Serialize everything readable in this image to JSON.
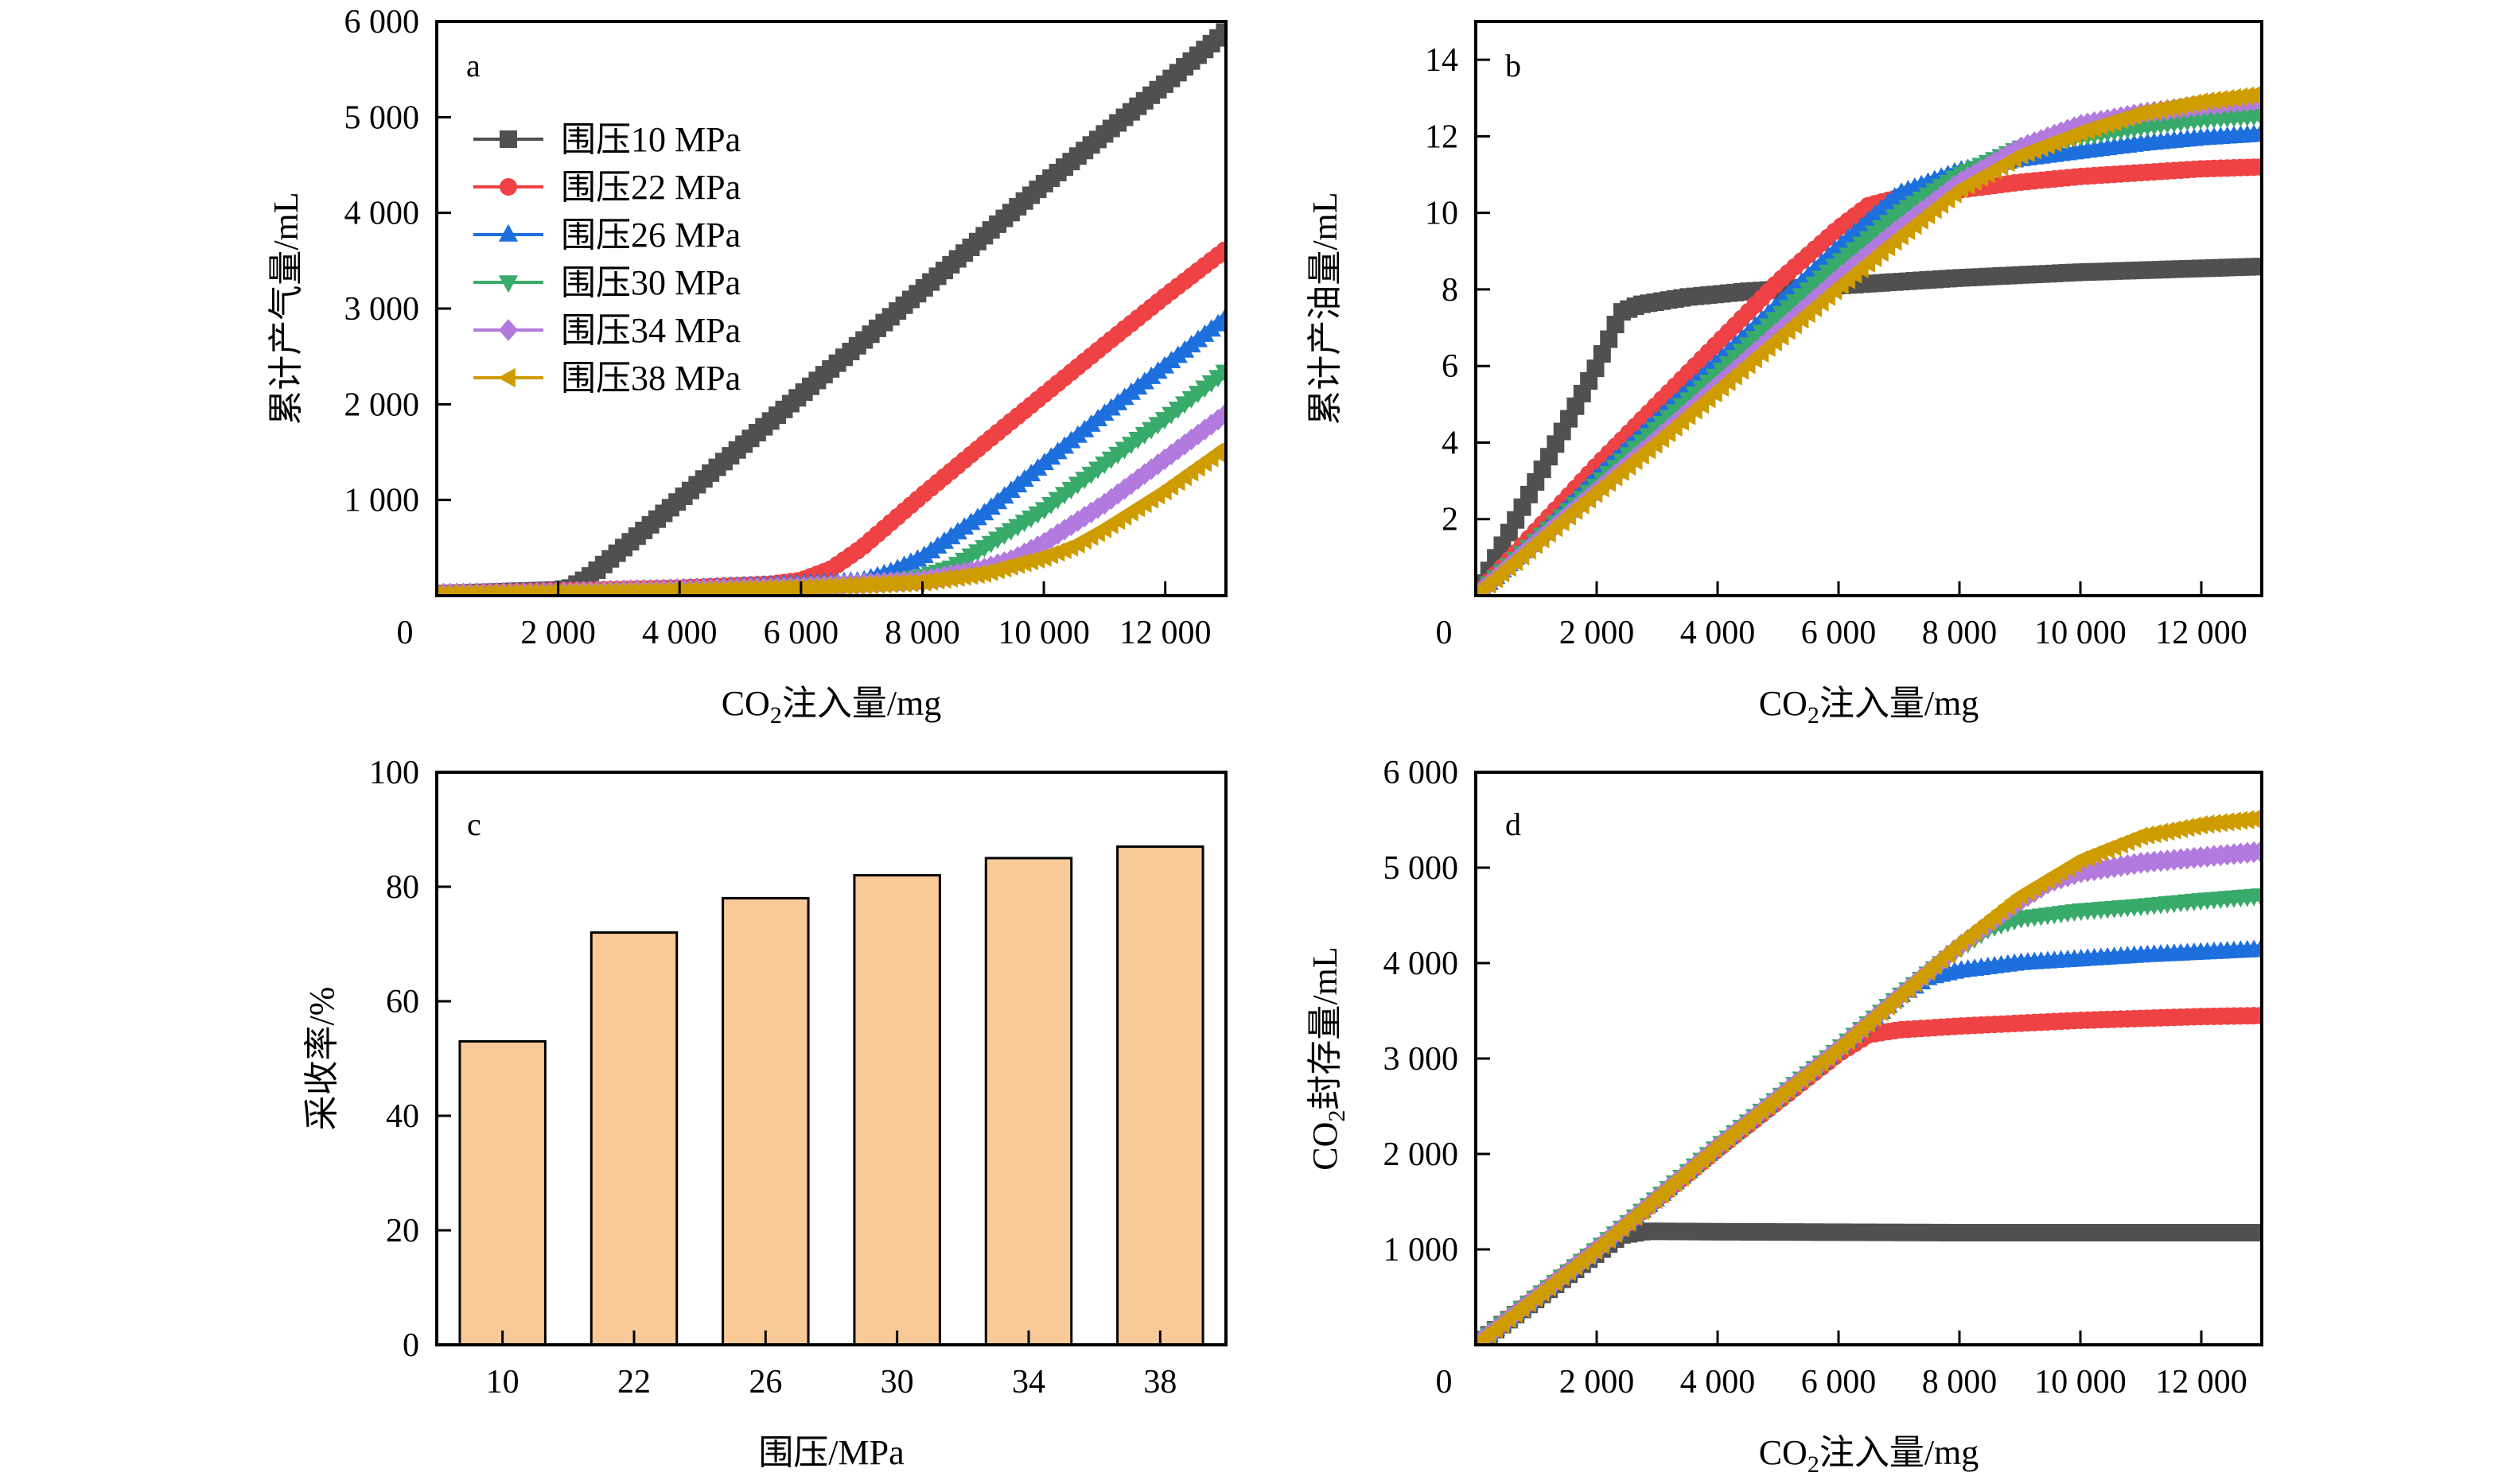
{
  "figure": {
    "legend_title": "",
    "series_meta": [
      {
        "name": "围压10 MPa",
        "color": "#505050",
        "marker": "square"
      },
      {
        "name": "围压22 MPa",
        "color": "#ee4244",
        "marker": "circle"
      },
      {
        "name": "围压26 MPa",
        "color": "#1e6fde",
        "marker": "triangle-up"
      },
      {
        "name": "围压30 MPa",
        "color": "#38aa6a",
        "marker": "triangle-down"
      },
      {
        "name": "围压34 MPa",
        "color": "#b27ade",
        "marker": "diamond"
      },
      {
        "name": "围压38 MPa",
        "color": "#cf9c00",
        "marker": "triangle-left"
      }
    ]
  },
  "chart_data": [
    {
      "panel": "a",
      "type": "line",
      "title": "",
      "xlabel": "CO2注入量/mg",
      "xlabel_parts": {
        "pre": "CO",
        "sub": "2",
        "post": "注入量/mg"
      },
      "ylabel": "累计产气量/mL",
      "xlim": [
        0,
        13000
      ],
      "ylim": [
        0,
        6000
      ],
      "xticks": [
        0,
        2000,
        4000,
        6000,
        8000,
        10000,
        12000
      ],
      "xtick_labels": [
        "0",
        "2 000",
        "4 000",
        "6 000",
        "8 000",
        "10 000",
        "12 000"
      ],
      "yticks": [
        1000,
        2000,
        3000,
        4000,
        5000,
        6000
      ],
      "ytick_labels": [
        "1 000",
        "2 000",
        "3 000",
        "4 000",
        "5 000",
        "6 000"
      ],
      "legend": "top-left",
      "grid": false,
      "series": [
        {
          "name": "围压10 MPa",
          "x": [
            0,
            1000,
            2000,
            2200,
            2500,
            4000,
            6000,
            8000,
            10000,
            12000,
            13000
          ],
          "values": [
            20,
            40,
            60,
            80,
            190,
            1000,
            2100,
            3200,
            4300,
            5350,
            5900
          ]
        },
        {
          "name": "围压22 MPa",
          "x": [
            0,
            2000,
            4000,
            5500,
            6000,
            6500,
            7000,
            8000,
            9000,
            10000,
            11000,
            12000,
            13000
          ],
          "values": [
            20,
            50,
            80,
            120,
            160,
            280,
            500,
            1050,
            1580,
            2100,
            2620,
            3130,
            3620
          ]
        },
        {
          "name": "围压26 MPa",
          "x": [
            0,
            2000,
            4000,
            6000,
            7000,
            7500,
            8000,
            9000,
            10000,
            11000,
            12000,
            13000
          ],
          "values": [
            20,
            45,
            75,
            120,
            150,
            250,
            400,
            850,
            1380,
            1900,
            2400,
            2900
          ]
        },
        {
          "name": "围压30 MPa",
          "x": [
            0,
            2000,
            4000,
            6000,
            7500,
            8000,
            8500,
            9000,
            10000,
            11000,
            12000,
            13000
          ],
          "values": [
            20,
            40,
            65,
            100,
            150,
            200,
            300,
            500,
            900,
            1380,
            1850,
            2350
          ]
        },
        {
          "name": "围压34 MPa",
          "x": [
            0,
            2000,
            4000,
            6000,
            8000,
            9000,
            9500,
            10000,
            11000,
            12000,
            13000
          ],
          "values": [
            20,
            35,
            60,
            90,
            160,
            280,
            380,
            550,
            960,
            1430,
            1900
          ]
        },
        {
          "name": "围压38 MPa",
          "x": [
            0,
            2000,
            4000,
            6000,
            8000,
            9000,
            10000,
            10500,
            11000,
            12000,
            13000
          ],
          "values": [
            15,
            30,
            50,
            80,
            140,
            230,
            400,
            520,
            700,
            1100,
            1550
          ]
        }
      ]
    },
    {
      "panel": "b",
      "type": "line",
      "title": "",
      "xlabel": "CO2注入量/mg",
      "xlabel_parts": {
        "pre": "CO",
        "sub": "2",
        "post": "注入量/mg"
      },
      "ylabel": "累计产油量/mL",
      "xlim": [
        0,
        13000
      ],
      "ylim": [
        0,
        15
      ],
      "xticks": [
        0,
        2000,
        4000,
        6000,
        8000,
        10000,
        12000
      ],
      "xtick_labels": [
        "0",
        "2 000",
        "4 000",
        "6 000",
        "8 000",
        "10 000",
        "12 000"
      ],
      "yticks": [
        2,
        4,
        6,
        8,
        10,
        12,
        14
      ],
      "ytick_labels": [
        "2",
        "4",
        "6",
        "8",
        "10",
        "12",
        "14"
      ],
      "grid": false,
      "series": [
        {
          "name": "围压10 MPa",
          "x": [
            0,
            1000,
            2000,
            2400,
            2700,
            3500,
            4500,
            6000,
            8000,
            10000,
            12000,
            13000
          ],
          "values": [
            0,
            3.0,
            6.0,
            7.4,
            7.6,
            7.8,
            7.95,
            8.1,
            8.3,
            8.45,
            8.55,
            8.6
          ]
        },
        {
          "name": "围压22 MPa",
          "x": [
            0,
            1000,
            2000,
            3000,
            4000,
            5000,
            6000,
            6500,
            7000,
            8000,
            9000,
            10000,
            11000,
            12000,
            13000
          ],
          "values": [
            0,
            1.7,
            3.4,
            5.0,
            6.6,
            8.2,
            9.6,
            10.2,
            10.4,
            10.6,
            10.8,
            10.95,
            11.05,
            11.15,
            11.2
          ]
        },
        {
          "name": "围压26 MPa",
          "x": [
            0,
            1000,
            2000,
            3000,
            4000,
            5000,
            6000,
            7000,
            8000,
            9000,
            10000,
            11000,
            12000,
            13000
          ],
          "values": [
            0,
            1.5,
            3.1,
            4.6,
            6.1,
            7.6,
            9.1,
            10.5,
            11.1,
            11.4,
            11.6,
            11.8,
            11.95,
            12.05
          ]
        },
        {
          "name": "围压30 MPa",
          "x": [
            0,
            1000,
            2000,
            3000,
            4000,
            5000,
            6000,
            7000,
            8000,
            9000,
            10000,
            11000,
            12000,
            13000
          ],
          "values": [
            0,
            1.45,
            2.9,
            4.4,
            5.8,
            7.3,
            8.7,
            10.0,
            11.0,
            11.7,
            12.0,
            12.25,
            12.45,
            12.55
          ]
        },
        {
          "name": "围压34 MPa",
          "x": [
            0,
            1000,
            2000,
            3000,
            4000,
            5000,
            6000,
            7000,
            8000,
            9000,
            10000,
            11000,
            12000,
            13000
          ],
          "values": [
            0,
            1.4,
            2.75,
            4.1,
            5.5,
            6.9,
            8.3,
            9.6,
            10.8,
            11.7,
            12.3,
            12.6,
            12.8,
            12.95
          ]
        },
        {
          "name": "围压38 MPa",
          "x": [
            0,
            1000,
            2000,
            3000,
            4000,
            5000,
            6000,
            7000,
            8000,
            9000,
            10000,
            11000,
            12000,
            13000
          ],
          "values": [
            0,
            1.35,
            2.7,
            4.0,
            5.35,
            6.7,
            8.05,
            9.35,
            10.6,
            11.5,
            12.1,
            12.6,
            12.9,
            13.1
          ]
        }
      ]
    },
    {
      "panel": "c",
      "type": "bar",
      "title": "",
      "xlabel": "围压/MPa",
      "ylabel": "采收率/%",
      "categories": [
        "10",
        "22",
        "26",
        "30",
        "34",
        "38"
      ],
      "values": [
        53,
        72,
        78,
        82,
        85,
        87
      ],
      "ylim": [
        0,
        100
      ],
      "yticks": [
        0,
        20,
        40,
        60,
        80,
        100
      ],
      "ytick_labels": [
        "0",
        "20",
        "40",
        "60",
        "80",
        "100"
      ],
      "bar_color": "#f9c998",
      "grid": false
    },
    {
      "panel": "d",
      "type": "line",
      "title": "",
      "xlabel": "CO2注入量/mg",
      "xlabel_parts": {
        "pre": "CO",
        "sub": "2",
        "post": "注入量/mg"
      },
      "ylabel": "CO2封存量/mL",
      "ylabel_parts": {
        "pre": "CO",
        "sub": "2",
        "post": "封存量/mL"
      },
      "xlim": [
        0,
        13000
      ],
      "ylim": [
        0,
        6000
      ],
      "xticks": [
        0,
        2000,
        4000,
        6000,
        8000,
        10000,
        12000
      ],
      "xtick_labels": [
        "0",
        "2 000",
        "4 000",
        "6 000",
        "8 000",
        "10 000",
        "12 000"
      ],
      "yticks": [
        1000,
        2000,
        3000,
        4000,
        5000,
        6000
      ],
      "ytick_labels": [
        "1 000",
        "2 000",
        "3 000",
        "4 000",
        "5 000",
        "6 000"
      ],
      "grid": false,
      "series": [
        {
          "name": "围压10 MPa",
          "x": [
            0,
            1000,
            2000,
            2400,
            2800,
            4000,
            6000,
            8000,
            10000,
            12000,
            13000
          ],
          "values": [
            0,
            480,
            960,
            1150,
            1190,
            1185,
            1180,
            1175,
            1175,
            1175,
            1175
          ]
        },
        {
          "name": "围压22 MPa",
          "x": [
            0,
            2000,
            4000,
            6000,
            6500,
            7000,
            8000,
            9000,
            10000,
            11000,
            12000,
            13000
          ],
          "values": [
            0,
            1000,
            2050,
            3050,
            3250,
            3300,
            3340,
            3370,
            3400,
            3420,
            3440,
            3450
          ]
        },
        {
          "name": "围压26 MPa",
          "x": [
            0,
            2000,
            4000,
            6000,
            7000,
            7500,
            8000,
            9000,
            10000,
            11000,
            12000,
            13000
          ],
          "values": [
            0,
            1000,
            2080,
            3100,
            3650,
            3850,
            3920,
            4000,
            4040,
            4080,
            4110,
            4140
          ]
        },
        {
          "name": "围压30 MPa",
          "x": [
            0,
            2000,
            4000,
            6000,
            7000,
            8000,
            8500,
            9000,
            10000,
            11000,
            12000,
            13000
          ],
          "values": [
            0,
            1000,
            2080,
            3100,
            3650,
            4150,
            4370,
            4470,
            4550,
            4600,
            4660,
            4710
          ]
        },
        {
          "name": "围压34 MPa",
          "x": [
            0,
            2000,
            4000,
            6000,
            7000,
            8000,
            9000,
            9500,
            10000,
            11000,
            12000,
            13000
          ],
          "values": [
            0,
            1000,
            2080,
            3100,
            3650,
            4180,
            4650,
            4850,
            4950,
            5050,
            5110,
            5170
          ]
        },
        {
          "name": "围压38 MPa",
          "x": [
            0,
            2000,
            4000,
            6000,
            7000,
            8000,
            9000,
            10000,
            11000,
            12000,
            13000
          ],
          "values": [
            0,
            1000,
            2080,
            3100,
            3650,
            4200,
            4700,
            5080,
            5330,
            5450,
            5520
          ]
        }
      ]
    }
  ]
}
